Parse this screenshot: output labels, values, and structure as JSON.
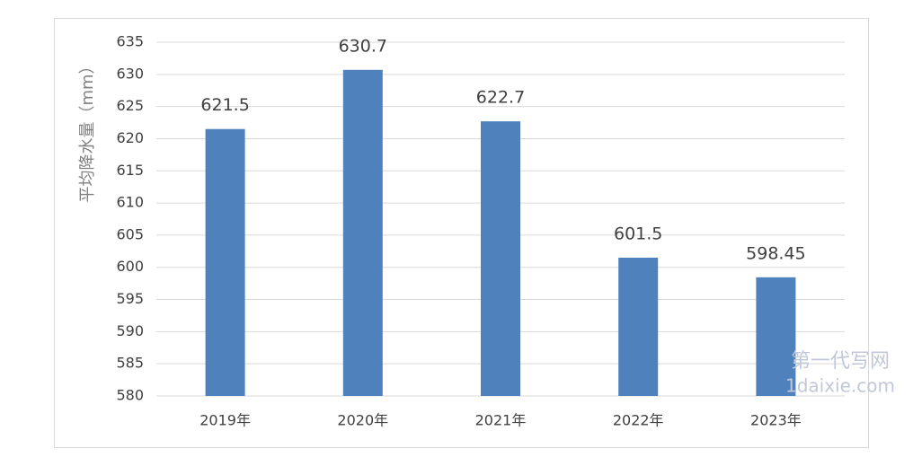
{
  "chart_data": {
    "type": "bar",
    "y_label": "平均降水量（mm）",
    "categories": [
      "2019年",
      "2020年",
      "2021年",
      "2022年",
      "2023年"
    ],
    "values": [
      621.5,
      630.7,
      622.7,
      601.5,
      598.45
    ],
    "color": "#4f81bd",
    "ylim": [
      580,
      635
    ],
    "yticks": [
      580,
      585,
      590,
      595,
      600,
      605,
      610,
      615,
      620,
      625,
      630,
      635
    ],
    "grid": true
  },
  "watermark": [
    "第一代写网",
    "1daixie.com"
  ]
}
